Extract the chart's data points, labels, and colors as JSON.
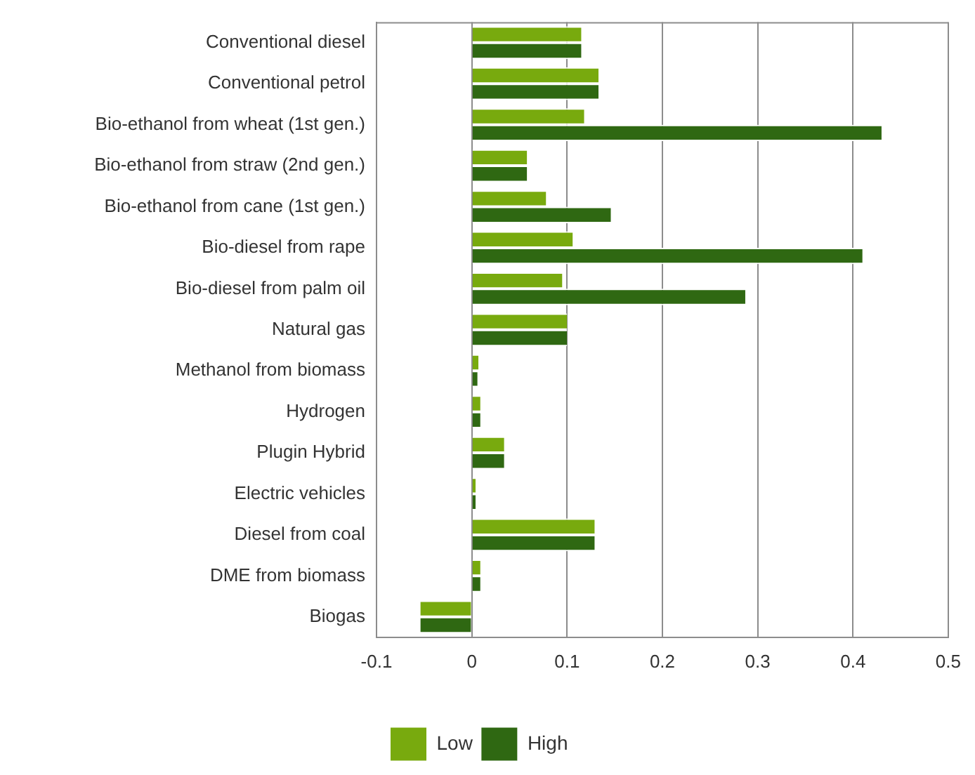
{
  "chart_data": {
    "type": "bar",
    "orientation": "horizontal",
    "categories": [
      "Conventional diesel",
      "Conventional petrol",
      "Bio-ethanol from wheat (1st gen.)",
      "Bio-ethanol from straw (2nd gen.)",
      "Bio-ethanol from cane (1st gen.)",
      "Bio-diesel from rape",
      "Bio-diesel from palm oil",
      "Natural gas",
      "Methanol from biomass",
      "Hydrogen",
      "Plugin Hybrid",
      "Electric vehicles",
      "Diesel from coal",
      "DME from biomass",
      "Biogas"
    ],
    "series": [
      {
        "name": "Low",
        "color": "#78aa0e",
        "values": [
          0.115,
          0.133,
          0.118,
          0.058,
          0.078,
          0.106,
          0.095,
          0.1,
          0.007,
          0.009,
          0.034,
          0.004,
          0.129,
          0.009,
          -0.054
        ]
      },
      {
        "name": "High",
        "color": "#2f6812",
        "values": [
          0.115,
          0.133,
          0.43,
          0.058,
          0.146,
          0.41,
          0.287,
          0.1,
          0.006,
          0.009,
          0.034,
          0.004,
          0.129,
          0.009,
          -0.054
        ]
      }
    ],
    "xlim": [
      -0.1,
      0.5
    ],
    "xticks": [
      -0.1,
      0,
      0.1,
      0.2,
      0.3,
      0.4,
      0.5
    ],
    "grid": "x",
    "legend": "bottom"
  }
}
